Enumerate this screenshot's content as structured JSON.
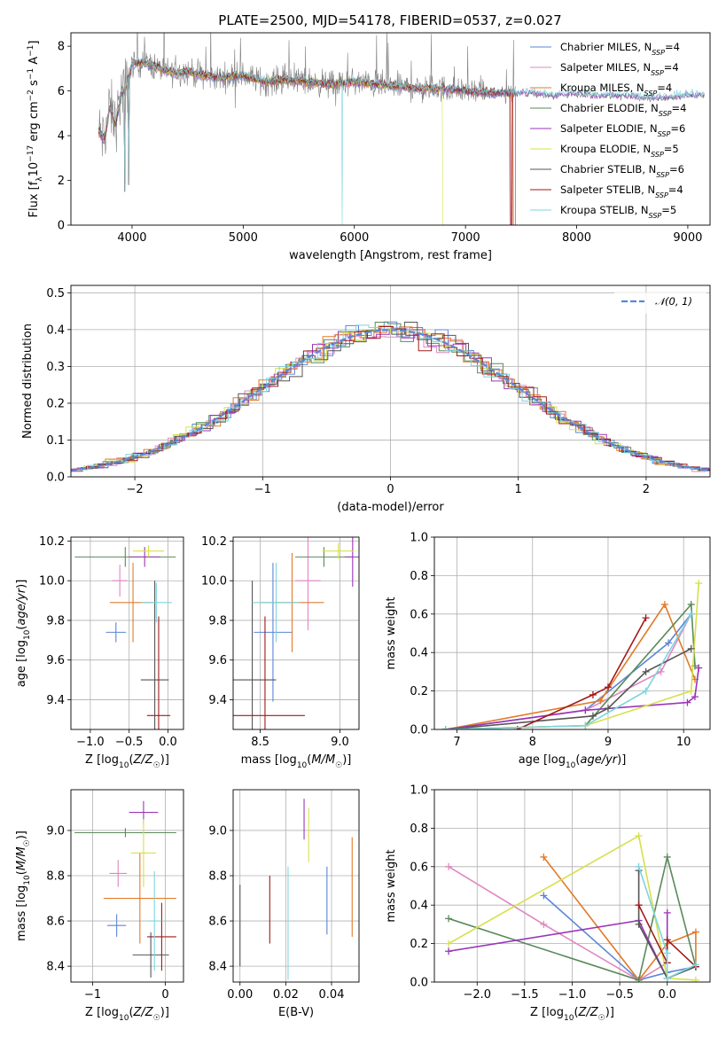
{
  "figure_title": "PLATE=2500, MJD=54178, FIBERID=0537, z=0.027",
  "colors": {
    "series": [
      "#5b86d6",
      "#e087c0",
      "#e07b2a",
      "#5a8a5a",
      "#9a36b8",
      "#d6e04a",
      "#555555",
      "#a01a1a",
      "#7fd4de"
    ]
  },
  "chart_data": [
    {
      "id": "spectrum",
      "type": "line",
      "title": "PLATE=2500, MJD=54178, FIBERID=0537, z=0.027",
      "xlabel": "wavelength [Angstrom, rest frame]",
      "ylabel": "Flux [f_λ 10^-17 erg cm^-2 s^-1 A^-1]",
      "xlim": [
        3450,
        9200
      ],
      "ylim": [
        0,
        8.6
      ],
      "xticks": [
        4000,
        5000,
        6000,
        7000,
        8000,
        9000
      ],
      "yticks": [
        0,
        2,
        4,
        6,
        8
      ],
      "grid": false,
      "legend_position": "upper-right",
      "series_names": [
        "Chabrier MILES, N_SSP=4",
        "Salpeter MILES, N_SSP=4",
        "Kroupa MILES, N_SSP=4",
        "Chabrier ELODIE, N_SSP=4",
        "Salpeter ELODIE, N_SSP=6",
        "Kroupa ELODIE, N_SSP=5",
        "Chabrier STELIB, N_SSP=6",
        "Salpeter STELIB, N_SSP=4",
        "Kroupa STELIB, N_SSP=5"
      ],
      "series_end": [
        7400,
        7400,
        7420,
        9150,
        9150,
        6800,
        7450,
        7430,
        9150
      ],
      "envelope": {
        "x": [
          3700,
          3750,
          3800,
          3850,
          3900,
          3950,
          4000,
          4100,
          4200,
          4300,
          4400,
          4500,
          4600,
          4800,
          5000,
          5200,
          5400,
          5600,
          5800,
          6000,
          6200,
          6400,
          6600,
          6800,
          7000,
          7200,
          7400,
          7600,
          7800,
          8000,
          8200,
          8400,
          8600,
          8800,
          9000,
          9150
        ],
        "y": [
          4.2,
          3.8,
          5.3,
          4.5,
          5.8,
          6.2,
          7.2,
          7.3,
          7.1,
          6.9,
          6.8,
          6.9,
          6.7,
          6.6,
          6.7,
          6.4,
          6.5,
          6.4,
          6.3,
          6.4,
          6.3,
          6.2,
          6.1,
          6.1,
          6.0,
          5.9,
          5.9,
          5.9,
          5.8,
          5.9,
          5.8,
          5.8,
          5.7,
          5.7,
          5.8,
          5.8
        ]
      },
      "absorption_features": [
        {
          "x": 3935,
          "y": 1.5
        },
        {
          "x": 3970,
          "y": 1.8
        },
        {
          "x": 5890,
          "y": 0.0
        },
        {
          "x": 6800,
          "y": 0.0
        },
        {
          "x": 7410,
          "y": 0.0
        }
      ]
    },
    {
      "id": "residuals",
      "type": "step",
      "xlabel": "(data-model)/error",
      "ylabel": "Normed distribution",
      "xlim": [
        -2.5,
        2.5
      ],
      "ylim": [
        0,
        0.52
      ],
      "xticks": [
        -2,
        -1,
        0,
        1,
        2
      ],
      "yticks": [
        0.0,
        0.1,
        0.2,
        0.3,
        0.4,
        0.5
      ],
      "grid": true,
      "legend_position": "upper-right",
      "reference_label": "N(0,1)",
      "bin_width": 0.1
    },
    {
      "id": "age_vs_Z",
      "type": "errorbar",
      "xlabel": "Z [log10(Z/Z☉)]",
      "ylabel": "age [log10(age/yr)]",
      "xlim": [
        -1.25,
        0.2
      ],
      "ylim": [
        9.25,
        10.22
      ],
      "xticks": [
        -1,
        -0.5,
        0
      ],
      "yticks": [
        9.4,
        9.6,
        9.8,
        10.0,
        10.2
      ],
      "grid": true,
      "points": [
        {
          "x": -0.67,
          "y": 9.74,
          "xerr": 0.13,
          "yerr": 0.05,
          "series": 0
        },
        {
          "x": -0.62,
          "y": 10.0,
          "xerr": 0.1,
          "yerr": 0.08,
          "series": 1
        },
        {
          "x": -0.45,
          "y": 9.89,
          "xerr": 0.3,
          "yerr": 0.2,
          "series": 2
        },
        {
          "x": -0.55,
          "y": 10.12,
          "xerr": 0.65,
          "yerr": 0.05,
          "series": 3
        },
        {
          "x": -0.3,
          "y": 10.12,
          "xerr": 0.2,
          "yerr": 0.05,
          "series": 4
        },
        {
          "x": -0.25,
          "y": 10.15,
          "xerr": 0.2,
          "yerr": 0.03,
          "series": 5
        },
        {
          "x": -0.17,
          "y": 9.5,
          "xerr": 0.18,
          "yerr": 0.5,
          "series": 6
        },
        {
          "x": -0.12,
          "y": 9.32,
          "xerr": 0.15,
          "yerr": 0.5,
          "series": 7
        },
        {
          "x": -0.15,
          "y": 9.89,
          "xerr": 0.2,
          "yerr": 0.1,
          "series": 8
        }
      ]
    },
    {
      "id": "age_vs_mass",
      "type": "errorbar",
      "xlabel": "mass [log10(M/M☉)]",
      "ylabel": "",
      "xlim": [
        8.33,
        9.12
      ],
      "ylim": [
        9.25,
        10.22
      ],
      "xticks": [
        8.5,
        9.0
      ],
      "yticks": [
        9.4,
        9.6,
        9.8,
        10.0,
        10.2
      ],
      "grid": true,
      "points": [
        {
          "x": 8.58,
          "y": 9.74,
          "xerr": 0.12,
          "yerr": 0.35,
          "series": 0
        },
        {
          "x": 8.8,
          "y": 10.0,
          "xerr": 0.08,
          "yerr": 0.25,
          "series": 1
        },
        {
          "x": 8.7,
          "y": 9.89,
          "xerr": 0.2,
          "yerr": 0.25,
          "series": 2
        },
        {
          "x": 8.9,
          "y": 10.12,
          "xerr": 0.18,
          "yerr": 0.05,
          "series": 3
        },
        {
          "x": 9.08,
          "y": 10.12,
          "xerr": 0.05,
          "yerr": 0.15,
          "series": 4
        },
        {
          "x": 8.99,
          "y": 10.15,
          "xerr": 0.1,
          "yerr": 0.04,
          "series": 5
        },
        {
          "x": 8.45,
          "y": 9.5,
          "xerr": 0.15,
          "yerr": 0.5,
          "series": 6
        },
        {
          "x": 8.53,
          "y": 9.32,
          "xerr": 0.25,
          "yerr": 0.5,
          "series": 7
        },
        {
          "x": 8.6,
          "y": 9.89,
          "xerr": 0.15,
          "yerr": 0.2,
          "series": 8
        }
      ]
    },
    {
      "id": "weight_vs_age",
      "type": "line",
      "xlabel": "age [log10(age/yr)]",
      "ylabel": "mass weight",
      "xlim": [
        6.7,
        10.35
      ],
      "ylim": [
        0,
        1
      ],
      "xticks": [
        7,
        8,
        9,
        10
      ],
      "yticks": [
        0.0,
        0.2,
        0.4,
        0.6,
        0.8,
        1.0
      ],
      "grid": true,
      "series": [
        {
          "series": 0,
          "x": [
            6.85,
            8.7,
            9.8,
            10.1
          ],
          "y": [
            0.0,
            0.1,
            0.45,
            0.6
          ]
        },
        {
          "series": 1,
          "x": [
            6.85,
            8.7,
            9.7,
            10.1
          ],
          "y": [
            0.0,
            0.1,
            0.3,
            0.6
          ]
        },
        {
          "series": 2,
          "x": [
            6.85,
            8.9,
            9.75,
            10.15
          ],
          "y": [
            0.0,
            0.15,
            0.65,
            0.26
          ]
        },
        {
          "series": 3,
          "x": [
            6.85,
            8.7,
            10.1,
            10.15
          ],
          "y": [
            0.0,
            0.02,
            0.65,
            0.33
          ]
        },
        {
          "series": 4,
          "x": [
            6.85,
            8.7,
            10.05,
            10.15,
            10.2
          ],
          "y": [
            0.0,
            0.1,
            0.14,
            0.17,
            0.32
          ]
        },
        {
          "series": 5,
          "x": [
            6.85,
            8.7,
            10.1,
            10.2
          ],
          "y": [
            0.0,
            0.02,
            0.2,
            0.76
          ]
        },
        {
          "series": 6,
          "x": [
            6.85,
            8.8,
            9.0,
            9.5,
            10.1
          ],
          "y": [
            0.0,
            0.07,
            0.11,
            0.3,
            0.42
          ]
        },
        {
          "series": 7,
          "x": [
            7.8,
            8.8,
            9.0,
            9.5
          ],
          "y": [
            0.0,
            0.18,
            0.22,
            0.58
          ]
        },
        {
          "series": 8,
          "x": [
            6.85,
            8.7,
            9.5,
            10.1
          ],
          "y": [
            0.0,
            0.02,
            0.2,
            0.6
          ]
        }
      ]
    },
    {
      "id": "mass_vs_Z",
      "type": "errorbar",
      "xlabel": "Z [log10(Z/Z☉)]",
      "ylabel": "mass [log10(M/M☉)]",
      "xlim": [
        -1.3,
        0.25
      ],
      "ylim": [
        8.33,
        9.18
      ],
      "xticks": [
        -1,
        0
      ],
      "yticks": [
        8.4,
        8.6,
        8.8,
        9.0
      ],
      "grid": true,
      "points": [
        {
          "x": -0.67,
          "y": 8.58,
          "xerr": 0.13,
          "yerr": 0.05,
          "series": 0
        },
        {
          "x": -0.65,
          "y": 8.81,
          "xerr": 0.12,
          "yerr": 0.06,
          "series": 1
        },
        {
          "x": -0.35,
          "y": 8.7,
          "xerr": 0.5,
          "yerr": 0.2,
          "series": 2
        },
        {
          "x": -0.55,
          "y": 8.99,
          "xerr": 0.7,
          "yerr": 0.02,
          "series": 3
        },
        {
          "x": -0.3,
          "y": 9.08,
          "xerr": 0.2,
          "yerr": 0.05,
          "series": 4
        },
        {
          "x": -0.3,
          "y": 8.9,
          "xerr": 0.17,
          "yerr": 0.15,
          "series": 5
        },
        {
          "x": -0.2,
          "y": 8.45,
          "xerr": 0.25,
          "yerr": 0.1,
          "series": 6
        },
        {
          "x": -0.05,
          "y": 8.53,
          "xerr": 0.2,
          "yerr": 0.15,
          "series": 7
        },
        {
          "x": -0.15,
          "y": 8.6,
          "xerr": 0.1,
          "yerr": 0.22,
          "series": 8
        }
      ]
    },
    {
      "id": "mass_vs_ebv",
      "type": "errorbar",
      "xlabel": "E(B-V)",
      "ylabel": "",
      "xlim": [
        -0.003,
        0.052
      ],
      "ylim": [
        8.33,
        9.18
      ],
      "xticks": [
        0.0,
        0.02,
        0.04
      ],
      "yticks": [
        8.4,
        8.6,
        8.8,
        9.0
      ],
      "grid": true,
      "points": [
        {
          "x": 0.0,
          "y": 8.58,
          "xerr": 0.0,
          "yerr": 0.18,
          "series": 6
        },
        {
          "x": 0.013,
          "y": 8.65,
          "xerr": 0.0,
          "yerr": 0.15,
          "series": 7
        },
        {
          "x": 0.021,
          "y": 8.59,
          "xerr": 0.0,
          "yerr": 0.25,
          "series": 8
        },
        {
          "x": 0.028,
          "y": 9.05,
          "xerr": 0.0,
          "yerr": 0.09,
          "series": 4
        },
        {
          "x": 0.03,
          "y": 8.98,
          "xerr": 0.0,
          "yerr": 0.12,
          "series": 5
        },
        {
          "x": 0.038,
          "y": 8.69,
          "xerr": 0.0,
          "yerr": 0.15,
          "series": 0
        },
        {
          "x": 0.049,
          "y": 8.75,
          "xerr": 0.0,
          "yerr": 0.22,
          "series": 2
        }
      ]
    },
    {
      "id": "weight_vs_Z",
      "type": "line",
      "xlabel": "Z [log10(Z/Z☉)]",
      "ylabel": "mass weight",
      "xlim": [
        -2.45,
        0.45
      ],
      "ylim": [
        0,
        1
      ],
      "xticks": [
        -2.0,
        -1.5,
        -1.0,
        -0.5,
        0.0
      ],
      "yticks": [
        0.0,
        0.2,
        0.4,
        0.6,
        0.8,
        1.0
      ],
      "grid": true,
      "series": [
        {
          "series": 0,
          "x": [
            -1.3,
            -0.3,
            0.0,
            0.3
          ],
          "y": [
            0.45,
            0.01,
            0.05,
            0.08
          ]
        },
        {
          "series": 1,
          "x": [
            -2.3,
            -1.3,
            -0.3,
            0.0
          ],
          "y": [
            0.6,
            0.3,
            0.01,
            0.1
          ]
        },
        {
          "series": 2,
          "x": [
            -1.3,
            -0.3,
            0.0,
            0.3,
            0.3
          ],
          "y": [
            0.65,
            0.01,
            0.2,
            0.26,
            0.08
          ]
        },
        {
          "series": 3,
          "x": [
            -2.3,
            -0.3,
            0.0,
            0.3
          ],
          "y": [
            0.33,
            0.01,
            0.65,
            0.08
          ]
        },
        {
          "series": 4,
          "x": [
            -2.3,
            -0.3,
            0.0,
            0.0
          ],
          "y": [
            0.16,
            0.32,
            0.02,
            0.36
          ]
        },
        {
          "series": 5,
          "x": [
            -2.3,
            -0.3,
            0.0,
            0.3
          ],
          "y": [
            0.2,
            0.76,
            0.02,
            0.01
          ]
        },
        {
          "series": 6,
          "x": [
            -0.3,
            -0.3,
            0.0,
            0.3
          ],
          "y": [
            0.58,
            0.3,
            0.02,
            0.08
          ]
        },
        {
          "series": 7,
          "x": [
            -0.3,
            0.0,
            0.0,
            0.3
          ],
          "y": [
            0.4,
            0.1,
            0.22,
            0.08
          ]
        },
        {
          "series": 8,
          "x": [
            -0.3,
            0.0,
            0.0,
            0.3
          ],
          "y": [
            0.6,
            0.15,
            0.02,
            0.09
          ]
        }
      ]
    }
  ]
}
